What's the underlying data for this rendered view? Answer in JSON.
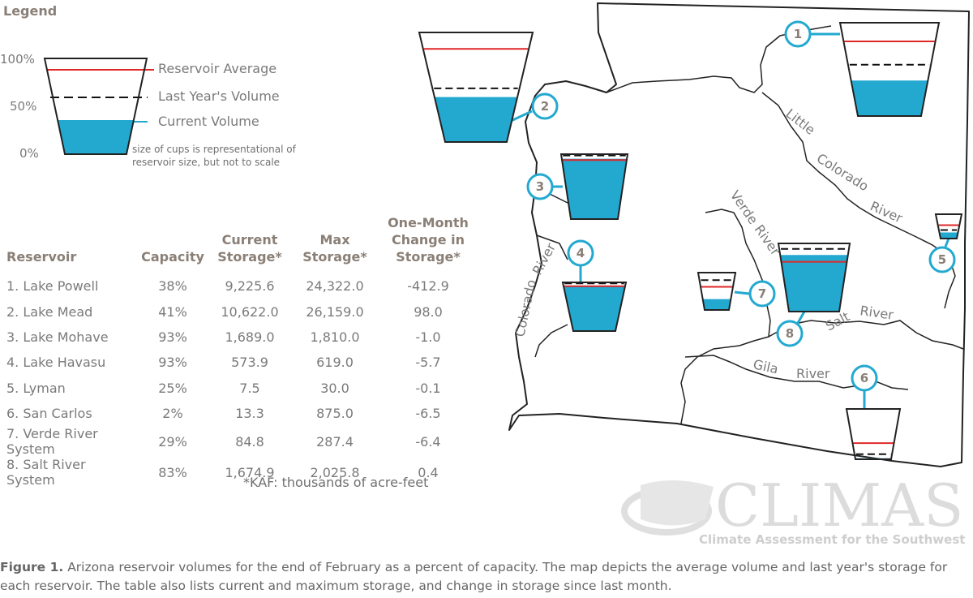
{
  "legend": {
    "title": "Legend",
    "axis": [
      "100%",
      "50%",
      "0%"
    ],
    "labels": {
      "average": "Reservoir Average",
      "last_year": "Last Year's Volume",
      "current": "Current Volume"
    },
    "note_line1": "size of cups is representational of",
    "note_line2": "reservoir size, but not to scale"
  },
  "colors": {
    "water": "#23a9d0",
    "average": "#e02727",
    "badge": "#23a9d0",
    "border": "#222222"
  },
  "table": {
    "headers": {
      "reservoir": "Reservoir",
      "capacity": "Capacity",
      "current": [
        "Current",
        "Storage*"
      ],
      "max": [
        "Max",
        "Storage*"
      ],
      "change": [
        "One-Month",
        "Change in",
        "Storage*"
      ]
    },
    "rows": [
      [
        "1. Lake Powell",
        "38%",
        "9,225.6",
        "24,322.0",
        "-412.9"
      ],
      [
        "2. Lake Mead",
        "41%",
        "10,622.0",
        "26,159.0",
        "98.0"
      ],
      [
        "3. Lake Mohave",
        "93%",
        "1,689.0",
        "1,810.0",
        "-1.0"
      ],
      [
        "4. Lake Havasu",
        "93%",
        "573.9",
        "619.0",
        "-5.7"
      ],
      [
        "5. Lyman",
        "25%",
        "7.5",
        "30.0",
        "-0.1"
      ],
      [
        "6. San Carlos",
        "2%",
        "13.3",
        "875.0",
        "-6.5"
      ],
      [
        "7. Verde River System",
        "29%",
        "84.8",
        "287.4",
        "-6.4"
      ],
      [
        "8. Salt River System",
        "83%",
        "1,674.9",
        "2,025.8",
        "0.4"
      ]
    ],
    "footnote": "*KAF: thousands of acre-feet"
  },
  "map": {
    "rivers": {
      "little_colorado": [
        "Little",
        "Colorado",
        "River"
      ],
      "colorado": [
        "Colorado",
        "River"
      ],
      "verde": [
        "Verde",
        "River"
      ],
      "salt": [
        "Salt",
        "River"
      ],
      "gila": [
        "Gila",
        "River"
      ]
    },
    "badges": [
      "1",
      "2",
      "3",
      "4",
      "5",
      "6",
      "7",
      "8"
    ]
  },
  "chart_data": {
    "type": "pictogram",
    "categories": [
      "1",
      "2",
      "3",
      "4",
      "5",
      "6",
      "7",
      "8"
    ],
    "series": [
      {
        "name": "Current Volume",
        "values": [
          38,
          41,
          93,
          93,
          25,
          2,
          29,
          83
        ]
      },
      {
        "name": "Reservoir Average",
        "values": [
          80,
          85,
          91,
          92,
          55,
          32,
          62,
          73
        ]
      },
      {
        "name": "Last Year's Volume",
        "values": [
          55,
          49,
          98,
          98,
          35,
          10,
          80,
          92
        ]
      }
    ],
    "ylim": [
      0,
      100
    ]
  },
  "logo": {
    "name": "CLIMAS",
    "subtitle": "Climate Assessment for the Southwest"
  },
  "caption": {
    "bold": "Figure 1.",
    "line1": " Arizona reservoir volumes for the end of February as a percent of capacity. The map depicts the average volume and last year's storage for",
    "line2": "each reservoir. The table also lists current and maximum storage, and change in storage since last month."
  }
}
